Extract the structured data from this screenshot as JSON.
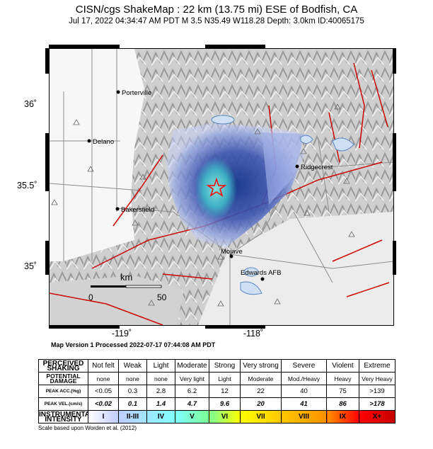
{
  "header": {
    "title": "CISN/cgs ShakeMap : 22 km (13.75 mi) ESE of Bodfish, CA",
    "subtitle": "Jul 17, 2022 04:34:47 AM PDT   M 3.5   N35.49 W118.28   Depth: 3.0km   ID:40065175"
  },
  "map": {
    "lat_labels": [
      "36˚",
      "35.5˚",
      "35˚"
    ],
    "lon_labels": [
      "-119˚",
      "-118˚"
    ],
    "cities": [
      {
        "name": "Porterville"
      },
      {
        "name": "Delano"
      },
      {
        "name": "Ridgecrest"
      },
      {
        "name": "Bakersfield"
      },
      {
        "name": "Mojave"
      },
      {
        "name": "Edwards AFB"
      }
    ],
    "scale_bar": {
      "unit": "km",
      "start": "0",
      "end": "50"
    },
    "epicenter_marker": "star-icon",
    "fault_color": "#cc0000",
    "intensity_color": "#2c3f9c"
  },
  "version_line": "Map Version 1 Processed 2022-07-17 07:44:08 AM PDT",
  "scale_table": {
    "rows": [
      {
        "label": "PERCEIVED SHAKING",
        "values": [
          "Not felt",
          "Weak",
          "Light",
          "Moderate",
          "Strong",
          "Very strong",
          "Severe",
          "Violent",
          "Extreme"
        ]
      },
      {
        "label": "POTENTIAL DAMAGE",
        "values": [
          "none",
          "none",
          "none",
          "Very light",
          "Light",
          "Moderate",
          "Mod./Heavy",
          "Heavy",
          "Very Heavy"
        ]
      },
      {
        "label": "PEAK ACC.(%g)",
        "values": [
          "<0.05",
          "0.3",
          "2.8",
          "6.2",
          "12",
          "22",
          "40",
          "75",
          ">139"
        ]
      },
      {
        "label": "PEAK VEL.(cm/s)",
        "values": [
          "<0.02",
          "0.1",
          "1.4",
          "4.7",
          "9.6",
          "20",
          "41",
          "86",
          ">178"
        ]
      },
      {
        "label": "INSTRUMENTAL INTENSITY",
        "values": [
          "I",
          "II-III",
          "IV",
          "V",
          "VI",
          "VII",
          "VIII",
          "IX",
          "X+"
        ]
      }
    ],
    "intensity_colors": [
      "#ffffff",
      "#bfccff",
      "#a0e6ff",
      "#80ffff",
      "#7aff93",
      "#ffff00",
      "#ffc800",
      "#ff9100",
      "#ff0000",
      "#c80000"
    ]
  },
  "footnote": "Scale based upon Worden et al. (2012)"
}
